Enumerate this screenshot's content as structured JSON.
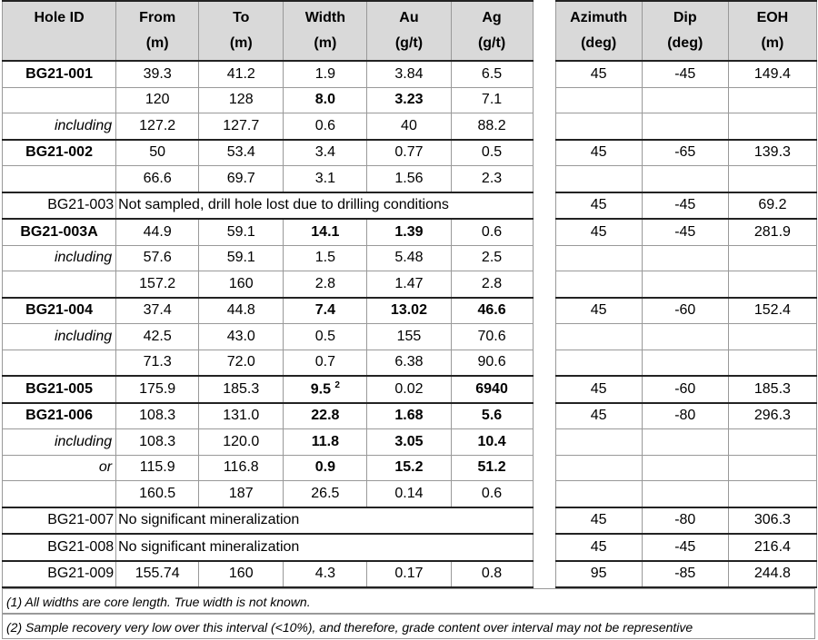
{
  "header": [
    {
      "name": "Hole ID"
    },
    {
      "name": "From",
      "unit": "(m)"
    },
    {
      "name": "To",
      "unit": "(m)"
    },
    {
      "name": "Width",
      "unit": "(m)"
    },
    {
      "name": "Au",
      "unit": "(g/t)"
    },
    {
      "name": "Ag",
      "unit": "(g/t)"
    },
    {
      "name": "Azimuth",
      "unit": "(deg)"
    },
    {
      "name": "Dip",
      "unit": "(deg)"
    },
    {
      "name": "EOH",
      "unit": "(m)"
    }
  ],
  "rows": [
    {
      "cells": [
        "BG21-001",
        "39.3",
        "41.2",
        "1.9",
        "3.84",
        "6.5"
      ],
      "right": [
        "45",
        "-45",
        "149.4"
      ],
      "bold": [
        0
      ]
    },
    {
      "cells": [
        null,
        "120",
        "128",
        "8.0",
        "3.23",
        "7.1"
      ],
      "right": null,
      "bold": [
        3,
        4
      ]
    },
    {
      "cells": [
        "including",
        "127.2",
        "127.7",
        "0.6",
        "40",
        "88.2"
      ],
      "right": null,
      "bold": []
    },
    {
      "cells": [
        "BG21-002",
        "50",
        "53.4",
        "3.4",
        "0.77",
        "0.5"
      ],
      "right": [
        "45",
        "-65",
        "139.3"
      ],
      "bold": [
        0
      ]
    },
    {
      "cells": [
        null,
        "66.6",
        "69.7",
        "3.1",
        "1.56",
        "2.3"
      ],
      "right": null,
      "bold": []
    },
    {
      "cells": [
        "BG21-003",
        "Not sampled, drill hole lost due to drilling conditions"
      ],
      "right": [
        "45",
        "-45",
        "69.2"
      ],
      "bold": []
    },
    {
      "cells": [
        "BG21-003A",
        "44.9",
        "59.1",
        "14.1",
        "1.39",
        "0.6"
      ],
      "right": [
        "45",
        "-45",
        "281.9"
      ],
      "bold": [
        0,
        3,
        4
      ]
    },
    {
      "cells": [
        "including",
        "57.6",
        "59.1",
        "1.5",
        "5.48",
        "2.5"
      ],
      "right": null,
      "bold": []
    },
    {
      "cells": [
        null,
        "157.2",
        "160",
        "2.8",
        "1.47",
        "2.8"
      ],
      "right": null,
      "bold": []
    },
    {
      "cells": [
        "BG21-004",
        "37.4",
        "44.8",
        "7.4",
        "13.02",
        "46.6"
      ],
      "right": [
        "45",
        "-60",
        "152.4"
      ],
      "bold": [
        0,
        3,
        4,
        5
      ]
    },
    {
      "cells": [
        "including",
        "42.5",
        "43.0",
        "0.5",
        "155",
        "70.6"
      ],
      "right": null,
      "bold": []
    },
    {
      "cells": [
        null,
        "71.3",
        "72.0",
        "0.7",
        "6.38",
        "90.6"
      ],
      "right": null,
      "bold": []
    },
    {
      "cells": [
        "BG21-005",
        "175.9",
        "185.3",
        {
          "text": "9.5",
          "sup": "2"
        },
        "0.02",
        "6940"
      ],
      "right": [
        "45",
        "-60",
        "185.3"
      ],
      "bold": [
        0,
        3,
        5
      ]
    },
    {
      "cells": [
        "BG21-006",
        "108.3",
        "131.0",
        "22.8",
        "1.68",
        "5.6"
      ],
      "right": [
        "45",
        "-80",
        "296.3"
      ],
      "bold": [
        0,
        3,
        4,
        5
      ]
    },
    {
      "cells": [
        "including",
        "108.3",
        "120.0",
        "11.8",
        "3.05",
        "10.4"
      ],
      "right": null,
      "bold": [
        3,
        4,
        5
      ]
    },
    {
      "cells": [
        "or",
        "115.9",
        "116.8",
        "0.9",
        "15.2",
        "51.2"
      ],
      "right": null,
      "bold": [
        3,
        4,
        5
      ]
    },
    {
      "cells": [
        null,
        "160.5",
        "187",
        "26.5",
        "0.14",
        "0.6"
      ],
      "right": null,
      "bold": []
    },
    {
      "cells": [
        "BG21-007",
        "No significant mineralization"
      ],
      "right": [
        "45",
        "-80",
        "306.3"
      ],
      "bold": []
    },
    {
      "cells": [
        "BG21-008",
        "No significant mineralization"
      ],
      "right": [
        "45",
        "-45",
        "216.4"
      ],
      "bold": []
    },
    {
      "cells": [
        "BG21-009",
        "155.74",
        "160",
        "4.3",
        "0.17",
        "0.8"
      ],
      "right": [
        "95",
        "-85",
        "244.8"
      ],
      "bold": []
    }
  ],
  "footnotes": [
    "(1) All widths are core length. True width is not known.",
    "(2) Sample recovery very low over this interval (<10%), and therefore, grade content over interval may not be representive"
  ]
}
